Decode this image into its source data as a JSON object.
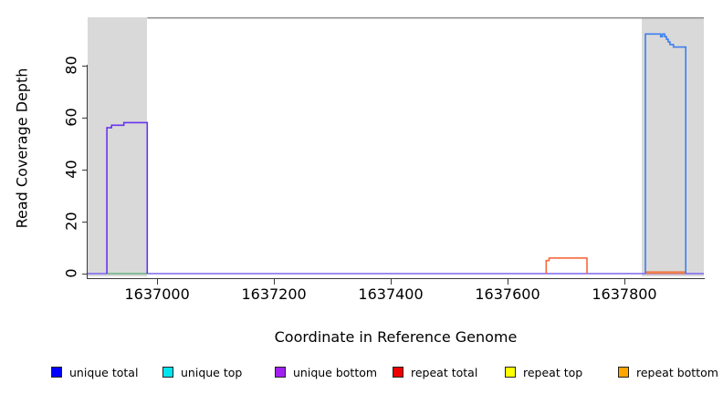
{
  "chart_data": {
    "type": "line",
    "subtype": "step-coverage-plot",
    "title": "",
    "xlabel": "Coordinate in Reference Genome",
    "ylabel": "Read Coverage Depth",
    "x_ticks": [
      1637000,
      1637200,
      1637400,
      1637600,
      1637800
    ],
    "y_ticks": [
      0,
      20,
      40,
      60,
      80
    ],
    "x_range": [
      1636881,
      1637936
    ],
    "y_range": [
      -2,
      98.5
    ],
    "grid": false,
    "legend_position": "bottom",
    "shaded_regions": [
      {
        "name": "left-repeat-region",
        "x0": 1636881,
        "x1": 1636983,
        "color": "#d9d9d9"
      },
      {
        "name": "right-repeat-region",
        "x0": 1637830,
        "x1": 1637936,
        "color": "#d9d9d9"
      }
    ],
    "top_boundary_line": {
      "x0": 1636983,
      "x1": 1637936,
      "y": 98.2,
      "color": "#8a8a8a"
    },
    "series": [
      {
        "name": "zero-baseline",
        "color": "#7b68ee",
        "width": 1.5,
        "points": [
          [
            1636881,
            0
          ],
          [
            1637936,
            0
          ]
        ]
      },
      {
        "name": "left-zero-overlap-green",
        "color": "#77c87c",
        "width": 1.5,
        "points": [
          [
            1636914,
            0
          ],
          [
            1636983,
            0
          ]
        ]
      },
      {
        "name": "unique-bottom-left-peak",
        "color": "#6934ee",
        "width": 1.6,
        "points": [
          [
            1636914,
            0
          ],
          [
            1636914,
            56
          ],
          [
            1636922,
            56
          ],
          [
            1636922,
            57
          ],
          [
            1636943,
            57
          ],
          [
            1636943,
            58
          ],
          [
            1636983,
            58
          ],
          [
            1636983,
            0
          ]
        ]
      },
      {
        "name": "repeat-mid-peak",
        "color": "#f7693e",
        "width": 1.6,
        "points": [
          [
            1637666,
            0
          ],
          [
            1637666,
            5
          ],
          [
            1637671,
            5
          ],
          [
            1637671,
            6
          ],
          [
            1637736,
            6
          ],
          [
            1637736,
            0
          ]
        ]
      },
      {
        "name": "repeat-right-zero-thick",
        "color": "#ee7e4e",
        "width": 3,
        "points": [
          [
            1637836,
            0.4
          ],
          [
            1637904,
            0.4
          ]
        ]
      },
      {
        "name": "unique-total-right-peak",
        "color": "#3d7ef0",
        "width": 1.6,
        "points": [
          [
            1637836,
            0
          ],
          [
            1637836,
            92
          ],
          [
            1637862,
            92
          ],
          [
            1637862,
            91
          ],
          [
            1637865,
            91
          ],
          [
            1637865,
            92
          ],
          [
            1637869,
            92
          ],
          [
            1637869,
            91
          ],
          [
            1637872,
            91
          ],
          [
            1637872,
            90
          ],
          [
            1637875,
            90
          ],
          [
            1637875,
            89
          ],
          [
            1637878,
            89
          ],
          [
            1637878,
            88
          ],
          [
            1637884,
            88
          ],
          [
            1637884,
            87
          ],
          [
            1637905,
            87
          ],
          [
            1637905,
            0
          ]
        ]
      }
    ],
    "legend": [
      {
        "label": "unique total",
        "color": "#0000ff"
      },
      {
        "label": "unique top",
        "color": "#00e5ee"
      },
      {
        "label": "unique bottom",
        "color": "#a020f0"
      },
      {
        "label": "repeat total",
        "color": "#ee0000"
      },
      {
        "label": "repeat top",
        "color": "#ffff00"
      },
      {
        "label": "repeat bottom",
        "color": "#ffa500"
      }
    ]
  }
}
